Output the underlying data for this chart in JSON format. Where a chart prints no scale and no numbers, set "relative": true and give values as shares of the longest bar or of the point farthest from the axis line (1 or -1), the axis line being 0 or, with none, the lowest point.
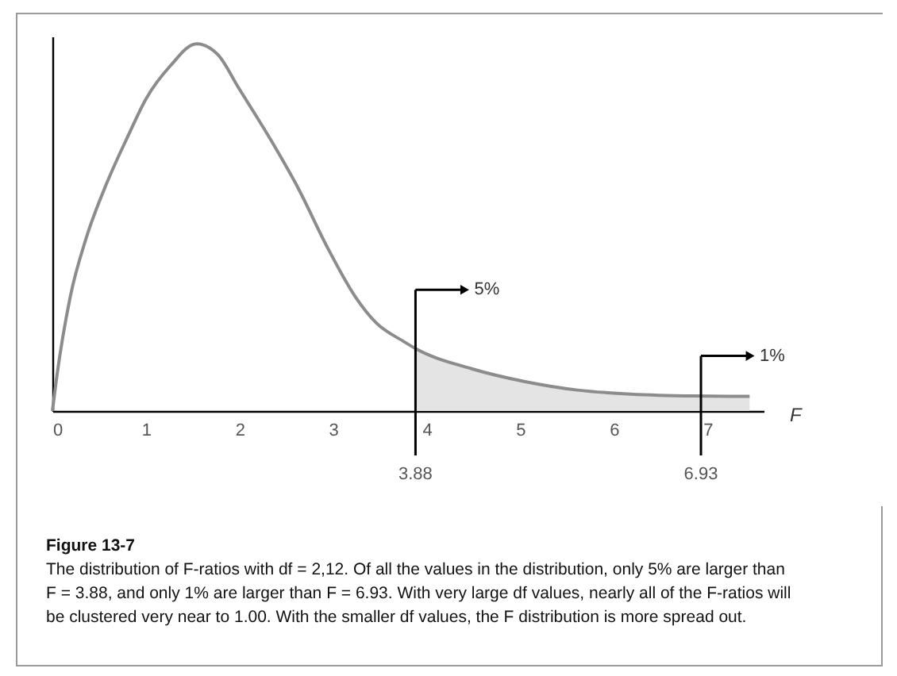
{
  "chart_data": {
    "type": "line",
    "relative": true,
    "title": "Figure 13-7",
    "subtitle": "The distribution of F-ratios with df = 2,12. Of all the values in the distribution, only 5% are larger than F = 3.88, and only 1% are larger than F = 6.93. With very large df values, nearly all of the F-ratios will be clustered very near to 1.00. With the smaller df values, the F distribution is more spread out.",
    "xlabel": "F",
    "xlim": [
      0,
      7.6
    ],
    "xticks": [
      0,
      1,
      2,
      3,
      4,
      5,
      6,
      7
    ],
    "series": [
      {
        "type": "area",
        "color": "#e4e4e4",
        "x": [
          3.88,
          4.48,
          5.05,
          5.61,
          6.18,
          6.85,
          7.45
        ],
        "values": [
          0.17,
          0.115,
          0.08,
          0.057,
          0.046,
          0.041,
          0.04
        ]
      },
      {
        "type": "line",
        "color": "#8c8c8c",
        "x": [
          0,
          0.045,
          0.19,
          0.36,
          0.58,
          0.81,
          1.0,
          1.26,
          1.54,
          1.77,
          1.99,
          2.33,
          2.62,
          2.95,
          3.24,
          3.46,
          3.75,
          3.88,
          4.48,
          5.05,
          5.61,
          6.18,
          6.85,
          7.45
        ],
        "values": [
          0,
          0.09,
          0.31,
          0.47,
          0.62,
          0.75,
          0.85,
          0.94,
          1,
          0.97,
          0.88,
          0.74,
          0.61,
          0.44,
          0.31,
          0.24,
          0.19,
          0.17,
          0.115,
          0.08,
          0.057,
          0.046,
          0.041,
          0.04
        ]
      }
    ],
    "ref_lines": [
      {
        "axis": "x",
        "value": 3.88,
        "label": "3.88"
      },
      {
        "axis": "x",
        "value": 6.93,
        "label": "6.93"
      }
    ],
    "annotations": [
      {
        "text": "5%",
        "x": 3.88,
        "y": 0.33
      },
      {
        "text": "1%",
        "x": 6.93,
        "y": 0.15
      }
    ]
  }
}
